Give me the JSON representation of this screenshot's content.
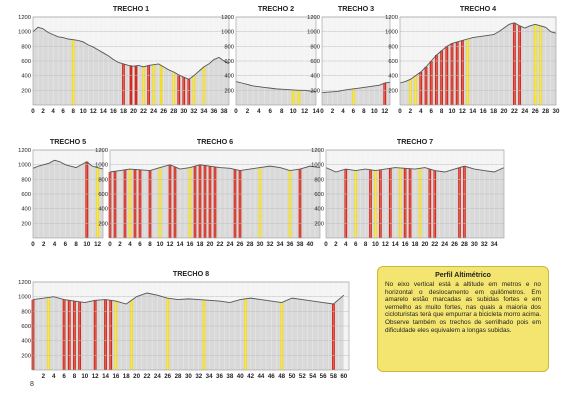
{
  "chart_data": [
    {
      "type": "area",
      "title": "TRECHO 1",
      "yticks": [
        200,
        400,
        600,
        800,
        1000,
        1200
      ],
      "ylim": [
        0,
        1200
      ],
      "xticks": [
        0,
        2,
        4,
        6,
        8,
        10,
        12,
        14,
        16,
        18,
        20,
        22,
        24,
        26,
        28,
        30,
        32,
        34,
        36,
        38
      ],
      "xlim": [
        0,
        39
      ],
      "profile": {
        "x": [
          0,
          1,
          2,
          3,
          4,
          5,
          6,
          7,
          8,
          9,
          10,
          11,
          12,
          13,
          14,
          15,
          16,
          17,
          18,
          19,
          20,
          21,
          22,
          23,
          24,
          25,
          26,
          27,
          28,
          29,
          30,
          31,
          32,
          33,
          34,
          35,
          36,
          37,
          38,
          39
        ],
        "elevation": [
          1000,
          1060,
          1040,
          990,
          960,
          930,
          920,
          900,
          890,
          880,
          860,
          820,
          790,
          750,
          710,
          670,
          620,
          580,
          560,
          540,
          530,
          540,
          520,
          540,
          550,
          560,
          520,
          480,
          450,
          410,
          380,
          350,
          400,
          460,
          520,
          560,
          620,
          650,
          600,
          560
        ]
      },
      "red_bands": [
        18,
        19.5,
        20.5,
        23,
        29,
        30,
        31
      ],
      "yellow_bands": [
        8,
        22,
        24,
        25.5,
        28,
        32,
        34
      ]
    },
    {
      "type": "area",
      "title": "TRECHO 2",
      "yticks": [
        200,
        400,
        600,
        800,
        1000,
        1200
      ],
      "ylim": [
        0,
        1200
      ],
      "xticks": [
        0,
        2,
        4,
        6,
        8,
        10,
        12,
        14
      ],
      "xlim": [
        0,
        14
      ],
      "profile": {
        "x": [
          0,
          1,
          2,
          3,
          4,
          5,
          6,
          7,
          8,
          9,
          10,
          11,
          12,
          13,
          14
        ],
        "elevation": [
          320,
          300,
          280,
          260,
          250,
          240,
          230,
          220,
          215,
          210,
          205,
          200,
          200,
          190,
          185
        ]
      },
      "red_bands": [],
      "yellow_bands": [
        10,
        11
      ]
    },
    {
      "type": "area",
      "title": "TRECHO 3",
      "yticks": [
        200,
        400,
        600,
        800,
        1000,
        1200
      ],
      "ylim": [
        0,
        1200
      ],
      "xticks": [
        0,
        2,
        4,
        6,
        8,
        10,
        12
      ],
      "xlim": [
        0,
        13
      ],
      "profile": {
        "x": [
          0,
          1,
          2,
          3,
          4,
          5,
          6,
          7,
          8,
          9,
          10,
          11,
          12,
          13
        ],
        "elevation": [
          170,
          175,
          180,
          185,
          200,
          210,
          220,
          230,
          240,
          250,
          260,
          270,
          300,
          310
        ]
      },
      "red_bands": [
        12
      ],
      "yellow_bands": [
        6
      ]
    },
    {
      "type": "area",
      "title": "TRECHO 4",
      "yticks": [
        200,
        400,
        600,
        800,
        1000,
        1200
      ],
      "ylim": [
        0,
        1200
      ],
      "xticks": [
        0,
        2,
        4,
        6,
        8,
        10,
        12,
        14,
        16,
        18,
        20,
        22,
        24,
        26,
        28,
        30
      ],
      "xlim": [
        0,
        30
      ],
      "profile": {
        "x": [
          0,
          1,
          2,
          3,
          4,
          5,
          6,
          7,
          8,
          9,
          10,
          11,
          12,
          13,
          14,
          15,
          16,
          17,
          18,
          19,
          20,
          21,
          22,
          23,
          24,
          25,
          26,
          27,
          28,
          29,
          30
        ],
        "elevation": [
          300,
          320,
          350,
          400,
          450,
          520,
          600,
          680,
          740,
          800,
          840,
          860,
          880,
          900,
          920,
          930,
          940,
          950,
          960,
          1000,
          1050,
          1100,
          1120,
          1080,
          1050,
          1080,
          1100,
          1080,
          1060,
          1000,
          980
        ]
      },
      "red_bands": [
        4,
        5,
        6,
        7,
        8,
        9,
        10,
        11,
        12,
        22,
        23
      ],
      "yellow_bands": [
        2,
        3,
        13,
        26,
        27
      ]
    },
    {
      "type": "area",
      "title": "TRECHO 5",
      "yticks": [
        200,
        400,
        600,
        800,
        1000,
        1200
      ],
      "ylim": [
        0,
        1200
      ],
      "xticks": [
        0,
        2,
        4,
        6,
        8,
        10,
        12
      ],
      "xlim": [
        0,
        13
      ],
      "profile": {
        "x": [
          0,
          1,
          2,
          3,
          4,
          5,
          6,
          7,
          8,
          9,
          10,
          11,
          12,
          13
        ],
        "elevation": [
          950,
          980,
          1000,
          1020,
          1060,
          1040,
          1000,
          980,
          960,
          1000,
          1040,
          980,
          960,
          940
        ]
      },
      "red_bands": [
        10
      ],
      "yellow_bands": [
        12
      ]
    },
    {
      "type": "area",
      "title": "TRECHO 6",
      "yticks": [
        200,
        400,
        600,
        800,
        1000,
        1200
      ],
      "ylim": [
        0,
        1200
      ],
      "xticks": [
        0,
        2,
        4,
        6,
        8,
        10,
        12,
        14,
        16,
        18,
        20,
        22,
        24,
        26,
        28,
        30,
        32,
        34,
        36,
        38,
        40
      ],
      "xlim": [
        0,
        42
      ],
      "profile": {
        "x": [
          0,
          2,
          4,
          6,
          8,
          10,
          12,
          14,
          16,
          18,
          20,
          22,
          24,
          26,
          28,
          30,
          32,
          34,
          36,
          38,
          40,
          42
        ],
        "elevation": [
          900,
          920,
          940,
          930,
          920,
          960,
          1000,
          940,
          960,
          1000,
          980,
          960,
          950,
          920,
          940,
          960,
          980,
          960,
          920,
          940,
          980,
          960
        ]
      },
      "red_bands": [
        0,
        1,
        3,
        5,
        6,
        8,
        12,
        13,
        17,
        18,
        19,
        20,
        21,
        25,
        26,
        38
      ],
      "yellow_bands": [
        4,
        10,
        16,
        30,
        36
      ]
    },
    {
      "type": "area",
      "title": "TRECHO 7",
      "yticks": [
        200,
        400,
        600,
        800,
        1000,
        1200
      ],
      "ylim": [
        0,
        1200
      ],
      "xticks": [
        0,
        2,
        4,
        6,
        8,
        10,
        12,
        14,
        16,
        18,
        20,
        22,
        24,
        26,
        28,
        30,
        32,
        34
      ],
      "xlim": [
        0,
        36
      ],
      "profile": {
        "x": [
          0,
          2,
          4,
          6,
          8,
          10,
          12,
          14,
          16,
          18,
          20,
          22,
          24,
          26,
          28,
          30,
          32,
          34,
          36
        ],
        "elevation": [
          960,
          900,
          940,
          920,
          940,
          920,
          940,
          960,
          950,
          940,
          960,
          920,
          900,
          940,
          980,
          940,
          920,
          900,
          960
        ]
      },
      "red_bands": [
        4,
        9,
        11,
        13,
        16,
        17,
        21,
        22,
        27,
        28
      ],
      "yellow_bands": [
        6,
        10,
        15,
        19
      ]
    },
    {
      "type": "area",
      "title": "TRECHO 8",
      "yticks": [
        200,
        400,
        600,
        800,
        1000,
        1200
      ],
      "ylim": [
        0,
        1200
      ],
      "xticks": [
        2,
        4,
        6,
        8,
        10,
        12,
        14,
        16,
        18,
        20,
        22,
        24,
        26,
        28,
        30,
        32,
        34,
        36,
        38,
        40,
        42,
        44,
        46,
        48,
        50,
        52,
        54,
        56,
        58,
        60
      ],
      "xlim": [
        0,
        61
      ],
      "profile": {
        "x": [
          0,
          2,
          4,
          6,
          8,
          10,
          12,
          14,
          16,
          18,
          20,
          22,
          24,
          26,
          28,
          30,
          32,
          34,
          36,
          38,
          40,
          42,
          44,
          46,
          48,
          50,
          52,
          54,
          56,
          58,
          60
        ],
        "elevation": [
          960,
          980,
          1000,
          960,
          940,
          920,
          950,
          960,
          940,
          900,
          1000,
          1050,
          1020,
          980,
          960,
          970,
          960,
          950,
          940,
          920,
          960,
          980,
          960,
          940,
          920,
          980,
          960,
          940,
          920,
          900,
          1020
        ]
      },
      "red_bands": [
        0,
        6,
        7,
        8,
        9,
        12,
        14,
        15,
        58
      ],
      "yellow_bands": [
        3,
        16,
        19,
        26,
        33,
        41,
        48
      ]
    }
  ],
  "legend": {
    "title": "Perfil Altimétrico",
    "text": "No eixo vertical está a altitude em metros e no horizontal o deslocamento em quilômetros. Em amarelo estão marcadas as subidas fortes e em vermelho as muito fortes, nas quais a maioria dos cicloturistas terá que empurrar a bicicleta morro acima. Observe também os trechos de serrilhado pois em dificuldade eles equivalem a longas subidas."
  },
  "footnote": "8",
  "colors": {
    "fill": "#d9d9d9",
    "line": "#555555",
    "red": "#d42a1e",
    "yellow": "#f2dd2a",
    "grid": "#ffffff",
    "axis": "#333333",
    "legend_bg": "#f3e56f"
  }
}
